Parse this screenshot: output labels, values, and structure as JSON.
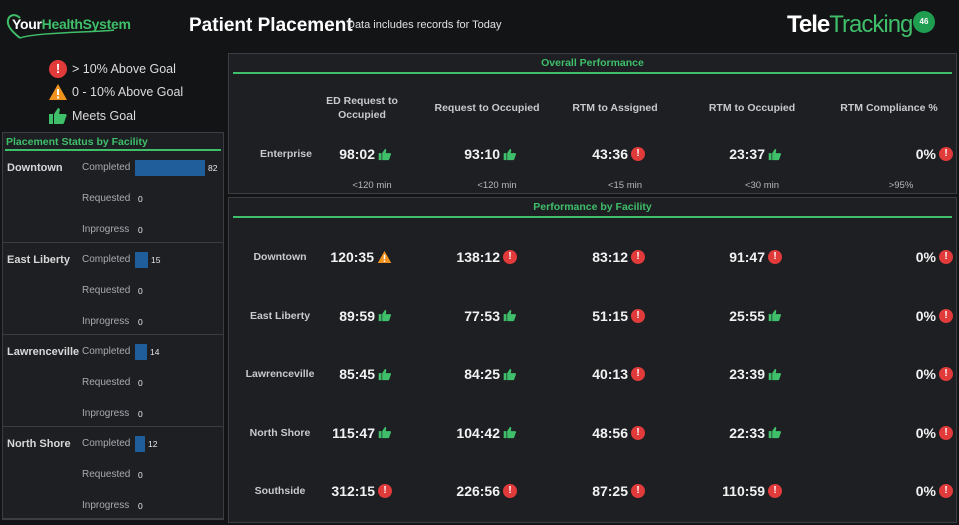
{
  "header": {
    "logo_prefix": "Your",
    "logo_suffix": "HealthSystem",
    "title": "Patient Placement",
    "subtitle": "Data includes records for Today",
    "brand_tele": "Tele",
    "brand_tracking": "Tracking",
    "badge_number": "46"
  },
  "legend": [
    {
      "icon": "red-exclamation-icon",
      "label": "> 10% Above Goal"
    },
    {
      "icon": "orange-warning-icon",
      "label": "0 - 10% Above Goal"
    },
    {
      "icon": "green-thumbs-up-icon",
      "label": "Meets Goal"
    }
  ],
  "placement_status": {
    "title": "Placement Status by Facility",
    "status_labels": [
      "Completed",
      "Requested",
      "Inprogress"
    ],
    "facilities": [
      {
        "name": "Downtown",
        "completed": 82,
        "requested": 0,
        "inprogress": 0
      },
      {
        "name": "East Liberty",
        "completed": 15,
        "requested": 0,
        "inprogress": 0
      },
      {
        "name": "Lawrenceville",
        "completed": 14,
        "requested": 0,
        "inprogress": 0
      },
      {
        "name": "North Shore",
        "completed": 12,
        "requested": 0,
        "inprogress": 0
      }
    ],
    "max_count": 82
  },
  "overall": {
    "title": "Overall Performance",
    "columns": [
      "ED Request to Occupied",
      "Request to Occupied",
      "RTM to Assigned",
      "RTM to Occupied",
      "RTM Compliance %"
    ],
    "row_label": "Enterprise",
    "values": [
      {
        "value": "98:02",
        "status": "good"
      },
      {
        "value": "93:10",
        "status": "good"
      },
      {
        "value": "43:36",
        "status": "bad"
      },
      {
        "value": "23:37",
        "status": "good"
      },
      {
        "value": "0%",
        "status": "bad"
      }
    ],
    "goals": [
      "<120 min",
      "<120 min",
      "<15 min",
      "<30 min",
      ">95%"
    ]
  },
  "by_facility": {
    "title": "Performance by Facility",
    "rows": [
      {
        "name": "Downtown",
        "cells": [
          {
            "value": "120:35",
            "status": "warn"
          },
          {
            "value": "138:12",
            "status": "bad"
          },
          {
            "value": "83:12",
            "status": "bad"
          },
          {
            "value": "91:47",
            "status": "bad"
          },
          {
            "value": "0%",
            "status": "bad"
          }
        ]
      },
      {
        "name": "East Liberty",
        "cells": [
          {
            "value": "89:59",
            "status": "good"
          },
          {
            "value": "77:53",
            "status": "good"
          },
          {
            "value": "51:15",
            "status": "bad"
          },
          {
            "value": "25:55",
            "status": "good"
          },
          {
            "value": "0%",
            "status": "bad"
          }
        ]
      },
      {
        "name": "Lawrenceville",
        "cells": [
          {
            "value": "85:45",
            "status": "good"
          },
          {
            "value": "84:25",
            "status": "good"
          },
          {
            "value": "40:13",
            "status": "bad"
          },
          {
            "value": "23:39",
            "status": "good"
          },
          {
            "value": "0%",
            "status": "bad"
          }
        ]
      },
      {
        "name": "North Shore",
        "cells": [
          {
            "value": "115:47",
            "status": "good"
          },
          {
            "value": "104:42",
            "status": "good"
          },
          {
            "value": "48:56",
            "status": "bad"
          },
          {
            "value": "22:33",
            "status": "good"
          },
          {
            "value": "0%",
            "status": "bad"
          }
        ]
      },
      {
        "name": "Southside",
        "cells": [
          {
            "value": "312:15",
            "status": "bad"
          },
          {
            "value": "226:56",
            "status": "bad"
          },
          {
            "value": "87:25",
            "status": "bad"
          },
          {
            "value": "110:59",
            "status": "bad"
          },
          {
            "value": "0%",
            "status": "bad"
          }
        ]
      }
    ]
  },
  "colors": {
    "accent_green": "#3fbf6a",
    "bad_red": "#e03a3a",
    "warn_orange": "#f0931e",
    "bar_blue": "#1f5e9a"
  }
}
